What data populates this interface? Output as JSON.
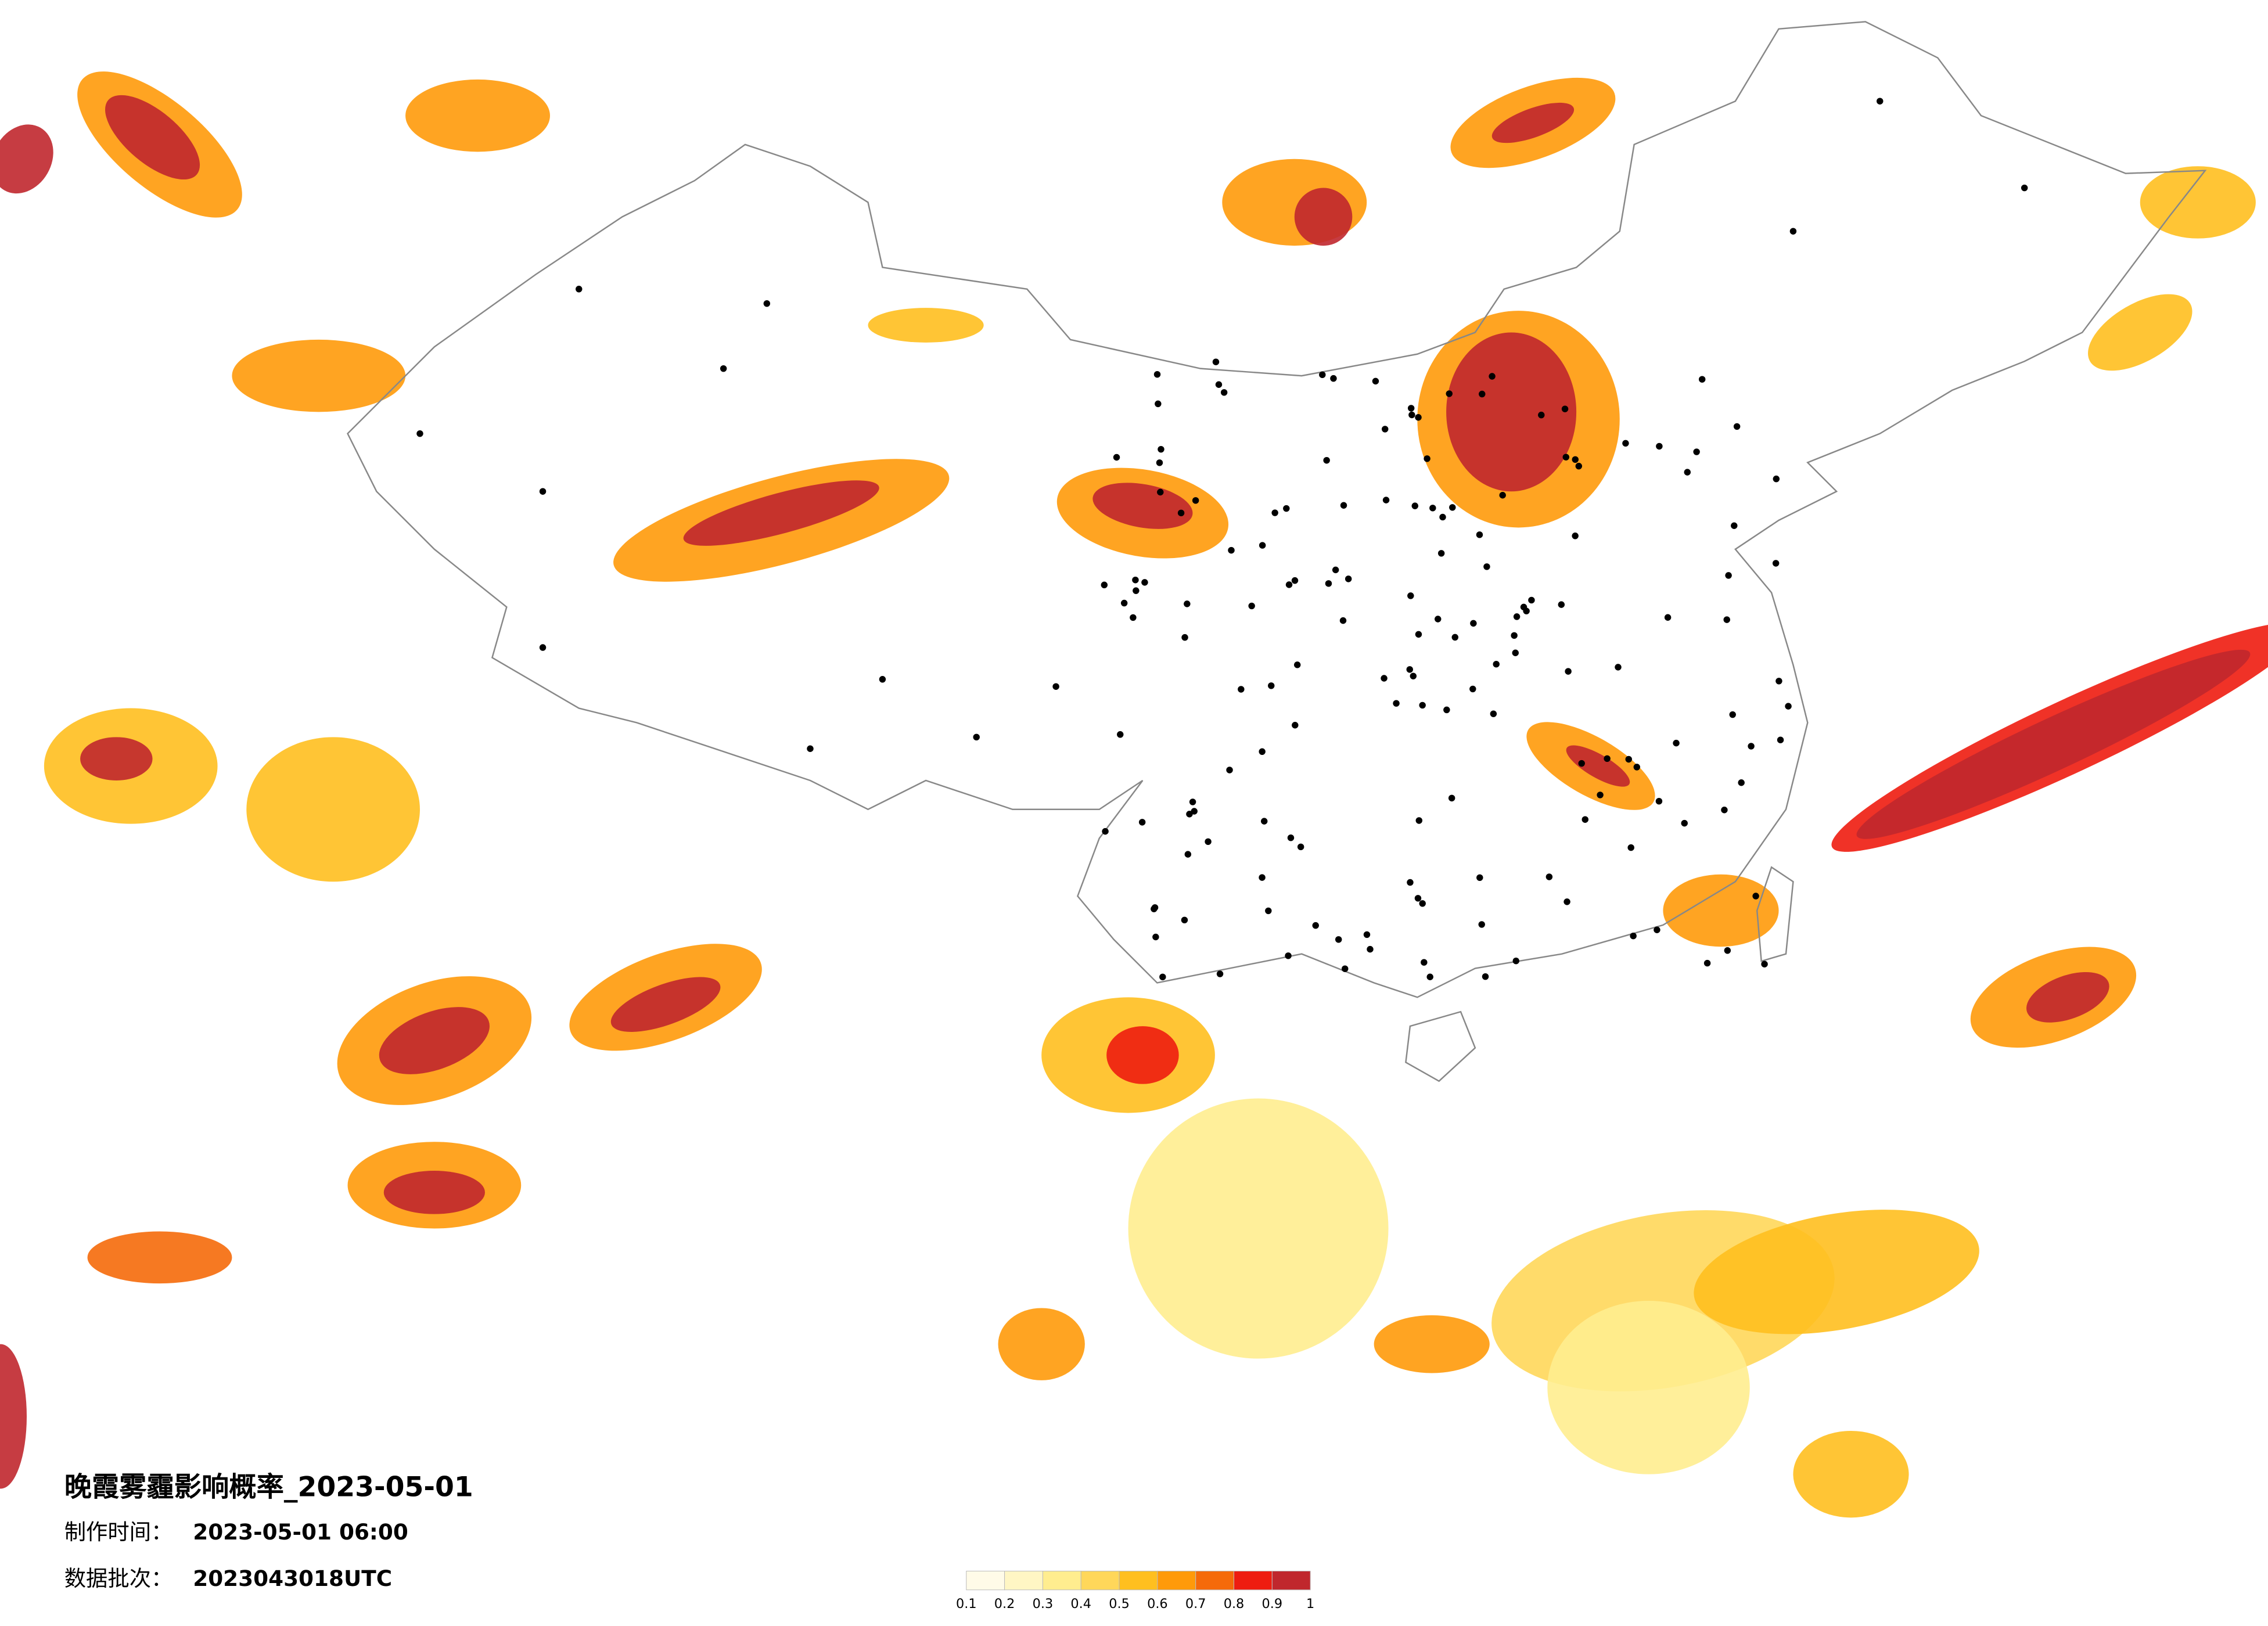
{
  "title": "晚霞雾霾影响概率_2023-05-01",
  "made_label": "制作时间：",
  "made_time": "2023-05-01 06:00",
  "batch_label": "数据批次：",
  "batch": "2023043018UTC",
  "legend": {
    "ticks": [
      0.1,
      0.2,
      0.3,
      0.4,
      0.5,
      0.6,
      0.7,
      0.8,
      0.9,
      1
    ],
    "colors": [
      "#fffbe8",
      "#fff6c4",
      "#ffed8f",
      "#ffd75a",
      "#ffbf1f",
      "#ff9a0a",
      "#f56a0a",
      "#ee1c10",
      "#c0272d"
    ]
  }
}
